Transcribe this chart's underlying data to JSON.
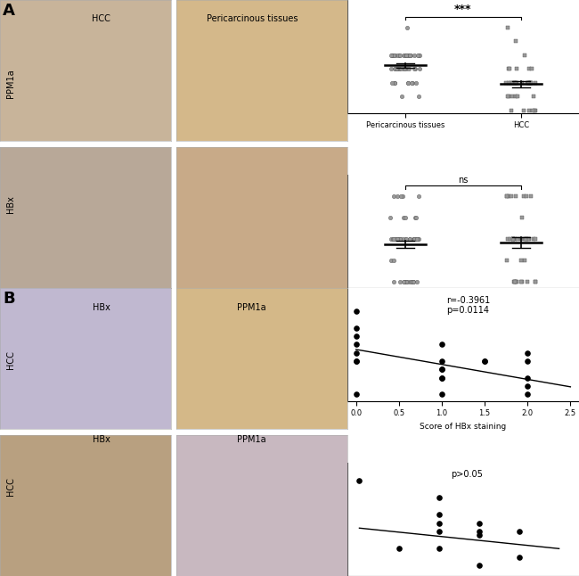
{
  "ppm1a_peri_scatter": [
    0.5,
    0.5,
    1.0,
    1.0,
    1.0,
    1.0,
    1.0,
    1.0,
    1.0,
    1.0,
    1.5,
    1.5,
    1.5,
    1.5,
    1.5,
    1.5,
    1.5,
    1.5,
    1.5,
    1.5,
    1.5,
    1.5,
    1.5,
    1.5,
    1.5,
    1.5,
    1.5,
    2.0,
    2.0,
    2.0,
    2.0,
    2.0,
    2.0,
    2.0,
    2.0,
    2.0,
    2.0,
    2.0,
    2.0,
    2.0,
    2.0,
    2.0,
    2.0,
    2.0,
    2.0,
    2.0,
    2.0,
    2.0,
    3.0
  ],
  "ppm1a_hcc_scatter": [
    0.0,
    0.0,
    0.0,
    0.0,
    0.0,
    0.0,
    0.5,
    0.5,
    0.5,
    0.5,
    0.5,
    0.5,
    1.0,
    1.0,
    1.0,
    1.0,
    1.0,
    1.0,
    1.0,
    1.0,
    1.0,
    1.0,
    1.0,
    1.0,
    1.0,
    1.0,
    1.0,
    1.5,
    1.5,
    1.5,
    1.5,
    1.5,
    2.0,
    2.5,
    3.0,
    1.0
  ],
  "hbx_peri_scatter": [
    0.0,
    0.0,
    0.0,
    0.0,
    0.0,
    0.0,
    0.0,
    0.0,
    0.0,
    0.0,
    0.0,
    0.0,
    0.0,
    0.5,
    0.5,
    1.0,
    1.0,
    1.0,
    1.0,
    1.0,
    1.0,
    1.0,
    1.0,
    1.0,
    1.0,
    1.0,
    1.0,
    1.0,
    1.0,
    1.0,
    1.0,
    1.0,
    1.0,
    1.0,
    1.0,
    1.0,
    1.0,
    1.0,
    1.0,
    1.0,
    1.5,
    1.5,
    1.5,
    1.5,
    1.5,
    2.0,
    2.0,
    2.0,
    2.0,
    2.0
  ],
  "hbx_hcc_scatter": [
    0.0,
    0.0,
    0.0,
    0.0,
    0.0,
    0.0,
    0.0,
    0.0,
    0.0,
    0.0,
    0.5,
    0.5,
    0.5,
    1.0,
    1.0,
    1.0,
    1.0,
    1.0,
    1.0,
    1.0,
    1.0,
    1.0,
    1.0,
    1.0,
    1.0,
    1.0,
    1.0,
    1.0,
    1.5,
    2.0,
    2.0,
    2.0,
    2.0,
    2.0,
    2.0,
    2.0,
    2.0
  ],
  "scatter_hbx": [
    0.0,
    0.0,
    0.0,
    0.0,
    0.0,
    0.0,
    0.0,
    0.0,
    1.0,
    1.0,
    1.0,
    1.0,
    1.0,
    1.0,
    1.0,
    1.5,
    1.5,
    2.0,
    2.0,
    2.0,
    2.0,
    2.0
  ],
  "scatter_ppm1a": [
    2.5,
    2.0,
    1.75,
    1.5,
    1.25,
    1.0,
    1.0,
    0.0,
    1.5,
    1.0,
    0.75,
    0.75,
    0.5,
    0.5,
    0.0,
    1.0,
    1.0,
    1.25,
    1.0,
    0.5,
    0.25,
    0.0
  ],
  "scatter_r": "r=-0.3961",
  "scatter_p": "p=0.0114",
  "scatter_slope": -0.45,
  "scatter_intercept": 1.35,
  "scatter2_x": [
    0,
    1,
    2,
    2,
    2,
    2,
    2,
    3,
    3,
    3,
    3,
    4,
    4
  ],
  "scatter2_y": [
    2.5,
    0.5,
    2.0,
    1.5,
    1.25,
    1.0,
    0.5,
    1.25,
    1.0,
    0.9,
    0.0,
    1.0,
    0.25
  ],
  "scatter2_p": "p>0.05",
  "scatter2_slope": -0.12,
  "scatter2_intercept": 1.1,
  "img_color_A_top_left": "#c8b49a",
  "img_color_A_top_right": "#d4b88a",
  "img_color_A_bot_left": "#b8a898",
  "img_color_A_bot_right": "#c8aa88",
  "img_color_B_top_left": "#c0b8d0",
  "img_color_B_top_right": "#d4b888",
  "img_color_B_bot_left": "#b8a080",
  "img_color_B_bot_right": "#c8b8c0"
}
